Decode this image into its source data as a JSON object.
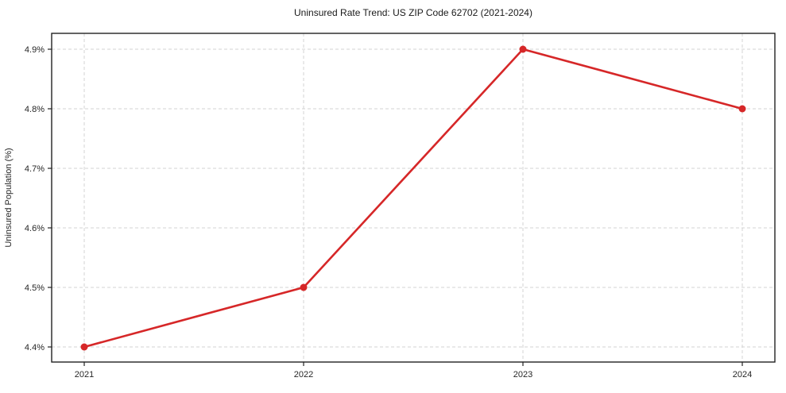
{
  "chart_data": {
    "type": "line",
    "title": "Uninsured Rate Trend: US ZIP Code 62702 (2021-2024)",
    "xlabel": "",
    "ylabel": "Uninsured Population (%)",
    "x": [
      2021,
      2022,
      2023,
      2024
    ],
    "xtick_labels": [
      "2021",
      "2022",
      "2023",
      "2024"
    ],
    "values": [
      4.4,
      4.5,
      4.9,
      4.8
    ],
    "series_name": "Uninsured Population (%)",
    "unit": "%",
    "yticks": [
      4.4,
      4.5,
      4.6,
      4.7,
      4.8,
      4.9
    ],
    "ytick_labels": [
      "4.4%",
      "4.5%",
      "4.6%",
      "4.7%",
      "4.8%",
      "4.9%"
    ],
    "ylim": [
      4.375,
      4.925
    ],
    "grid": true,
    "legend_position": "none",
    "colors": {
      "line": "#d62728",
      "marker": "#d62728",
      "grid": "#d3d3d3",
      "spine": "#222222",
      "background": "#ffffff",
      "text": "#262626"
    }
  }
}
